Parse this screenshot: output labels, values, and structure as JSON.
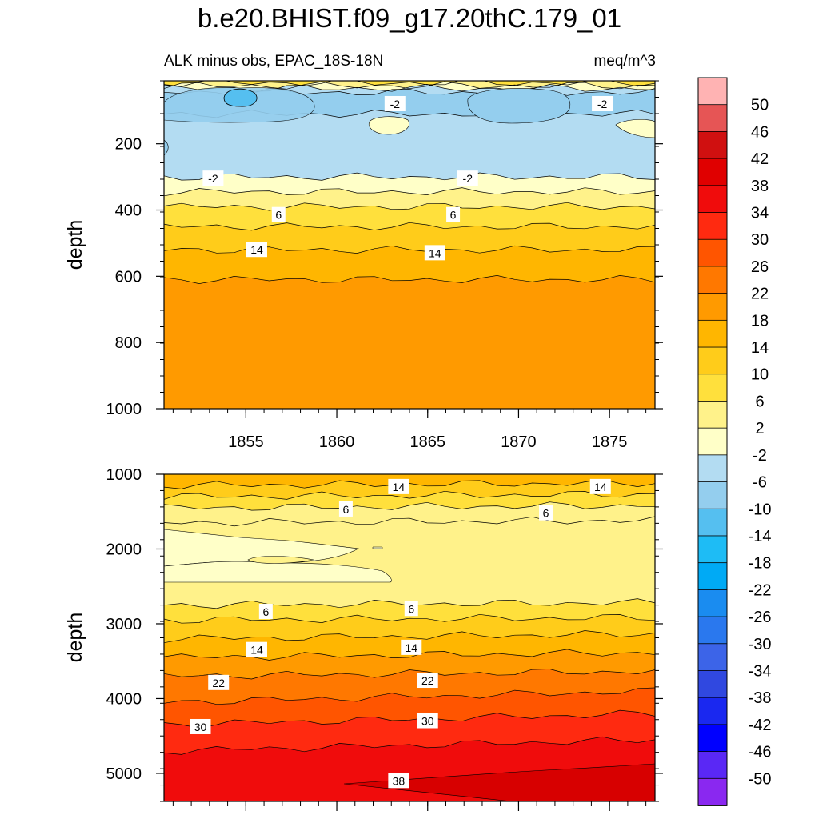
{
  "page_title": "b.e20.BHIST.f09_g17.20thC.179_01",
  "chart_data": [
    {
      "type": "heatmap",
      "subtitle_left": "ALK minus obs, EPAC_18S-18N",
      "subtitle_right": "meq/m^3",
      "xlabel": "",
      "ylabel": "depth",
      "xlim": [
        1850.5,
        1877.5
      ],
      "ylim": [
        1000,
        10
      ],
      "x_ticks": [
        1855,
        1860,
        1865,
        1870,
        1875
      ],
      "x_tick_labels": [
        "1855",
        "1860",
        "1865",
        "1870",
        "1875"
      ],
      "y_ticks": [
        200,
        400,
        600,
        800,
        1000
      ],
      "y_tick_labels": [
        "200",
        "400",
        "600",
        "800",
        "1000"
      ],
      "bands": [
        {
          "depth": 16,
          "value": 8
        },
        {
          "depth": 25,
          "value": 4
        },
        {
          "depth": 33,
          "value": 0
        },
        {
          "depth": 45,
          "value": -4
        },
        {
          "depth": 110,
          "value": -8
        },
        {
          "depth": 300,
          "value": -4
        },
        {
          "depth": 345,
          "value": 0
        },
        {
          "depth": 390,
          "value": 4
        },
        {
          "depth": 450,
          "value": 8
        },
        {
          "depth": 520,
          "value": 12
        },
        {
          "depth": 610,
          "value": 16
        },
        {
          "depth": 1000,
          "value": 20
        }
      ],
      "contour_labels": [
        {
          "text": "-2",
          "x": 1863.2,
          "y": 80
        },
        {
          "text": "-2",
          "x": 1874.6,
          "y": 80
        },
        {
          "text": "-2",
          "x": 1853.2,
          "y": 305
        },
        {
          "text": "-2",
          "x": 1867.2,
          "y": 305
        },
        {
          "text": "6",
          "x": 1856.8,
          "y": 415
        },
        {
          "text": "6",
          "x": 1866.4,
          "y": 415
        },
        {
          "text": "14",
          "x": 1855.6,
          "y": 520
        },
        {
          "text": "14",
          "x": 1865.4,
          "y": 530
        }
      ]
    },
    {
      "type": "heatmap",
      "xlabel": "",
      "ylabel": "depth",
      "xlim": [
        1850.5,
        1877.5
      ],
      "ylim": [
        5375,
        1000
      ],
      "y_ticks": [
        1000,
        2000,
        3000,
        4000,
        5000
      ],
      "y_tick_labels": [
        "1000",
        "2000",
        "3000",
        "4000",
        "5000"
      ],
      "bands": [
        {
          "depth": 1150,
          "value": 16
        },
        {
          "depth": 1300,
          "value": 12
        },
        {
          "depth": 1450,
          "value": 8
        },
        {
          "depth": 1650,
          "value": 4
        },
        {
          "depth": 2750,
          "value": 4
        },
        {
          "depth": 2950,
          "value": 8
        },
        {
          "depth": 3200,
          "value": 12
        },
        {
          "depth": 3450,
          "value": 16
        },
        {
          "depth": 3700,
          "value": 20
        },
        {
          "depth": 4050,
          "value": 24
        },
        {
          "depth": 4350,
          "value": 28
        },
        {
          "depth": 4700,
          "value": 32
        },
        {
          "depth": 5375,
          "value": 36
        }
      ],
      "contour_labels": [
        {
          "text": "14",
          "x": 1863.4,
          "y": 1170
        },
        {
          "text": "14",
          "x": 1874.5,
          "y": 1170
        },
        {
          "text": "6",
          "x": 1860.5,
          "y": 1470
        },
        {
          "text": "6",
          "x": 1871.5,
          "y": 1520
        },
        {
          "text": "6",
          "x": 1856.1,
          "y": 2840
        },
        {
          "text": "6",
          "x": 1864.1,
          "y": 2800
        },
        {
          "text": "14",
          "x": 1855.6,
          "y": 3350
        },
        {
          "text": "14",
          "x": 1864.1,
          "y": 3320
        },
        {
          "text": "22",
          "x": 1853.5,
          "y": 3790
        },
        {
          "text": "22",
          "x": 1865.0,
          "y": 3760
        },
        {
          "text": "30",
          "x": 1852.5,
          "y": 4380
        },
        {
          "text": "30",
          "x": 1865.0,
          "y": 4300
        },
        {
          "text": "38",
          "x": 1863.4,
          "y": 5100
        }
      ]
    }
  ],
  "colorbar": {
    "labels": [
      "50",
      "46",
      "42",
      "38",
      "34",
      "30",
      "26",
      "22",
      "18",
      "14",
      "10",
      "6",
      "2",
      "-2",
      "-6",
      "-10",
      "-14",
      "-18",
      "-22",
      "-26",
      "-30",
      "-34",
      "-38",
      "-42",
      "-46",
      "-50"
    ],
    "colors": [
      "#ffb3b3",
      "#e65555",
      "#d01010",
      "#e00000",
      "#f00c0c",
      "#ff2a10",
      "#ff5500",
      "#ff7800",
      "#ff9a00",
      "#ffb600",
      "#ffcc1a",
      "#ffe03c",
      "#fff28a",
      "#ffffc8",
      "#b3dcf2",
      "#94ceee",
      "#55bff0",
      "#1ebcf5",
      "#00aaf5",
      "#1a8cf0",
      "#2a78ee",
      "#3c64e8",
      "#3048e0",
      "#1a28f0",
      "#0000ff",
      "#5a28f5",
      "#8a28f0"
    ]
  },
  "value_colors": {
    "-8": "#94ceee",
    "-4": "#b3dcf2",
    "0": "#ffffc8",
    "4": "#fff28a",
    "8": "#ffe03c",
    "12": "#ffcc1a",
    "16": "#ffb600",
    "20": "#ff9a00",
    "24": "#ff7800",
    "28": "#ff5500",
    "32": "#ff2a10",
    "36": "#f00c0c"
  }
}
